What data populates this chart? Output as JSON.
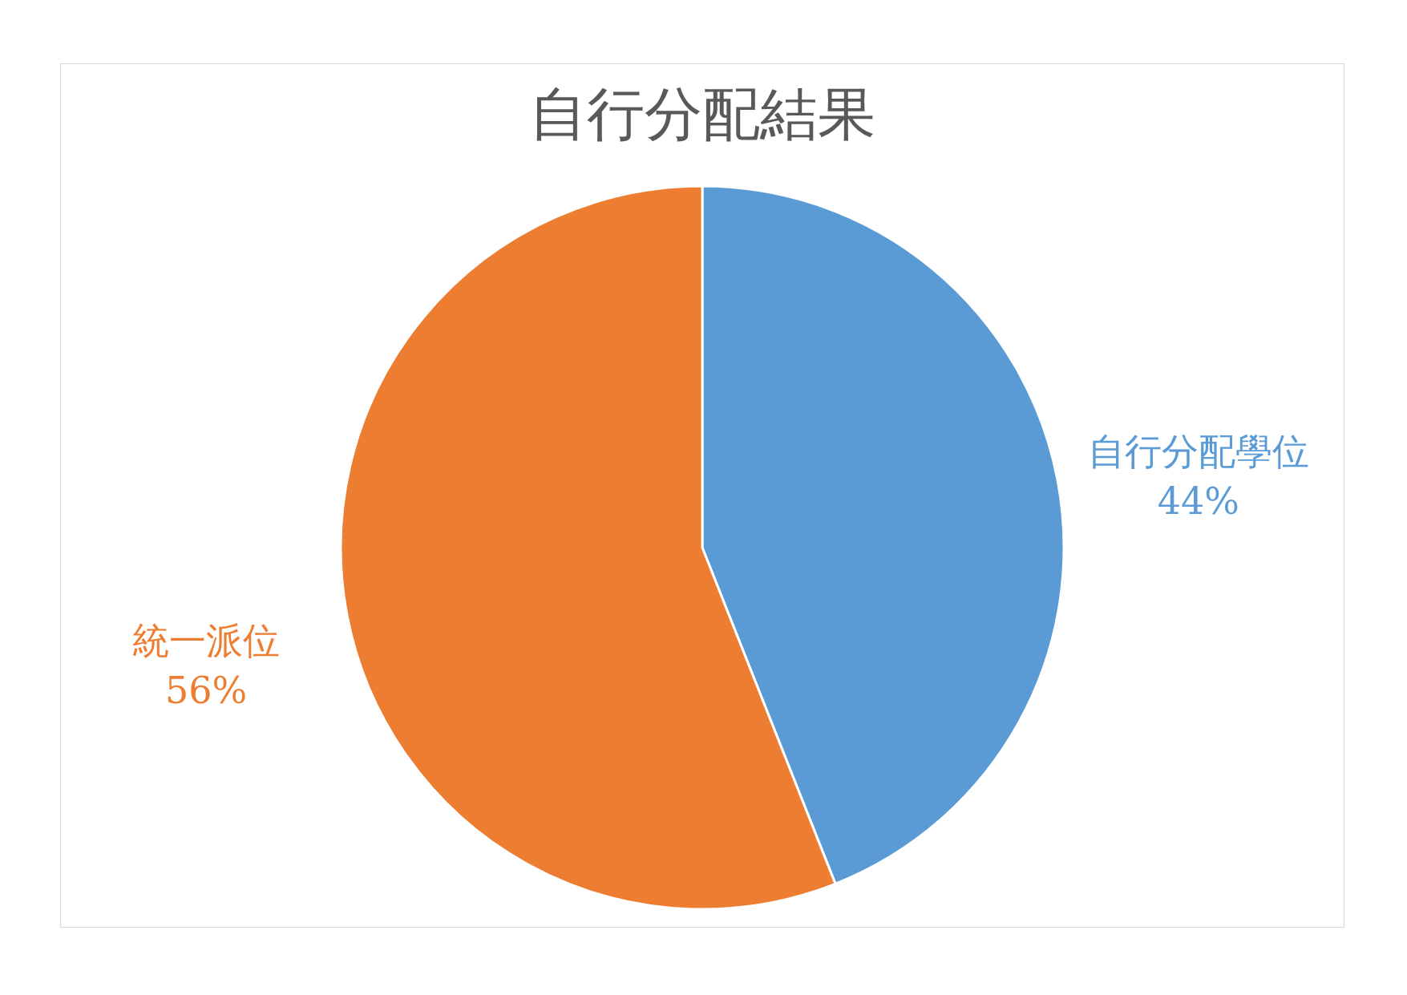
{
  "chart_data": {
    "type": "pie",
    "title": "自行分配結果",
    "categories": [
      "自行分配學位",
      "統一派位"
    ],
    "values": [
      44,
      56
    ],
    "value_labels": [
      "44%",
      "56%"
    ],
    "colors": [
      "#5b9bd5",
      "#ed7d31"
    ]
  }
}
